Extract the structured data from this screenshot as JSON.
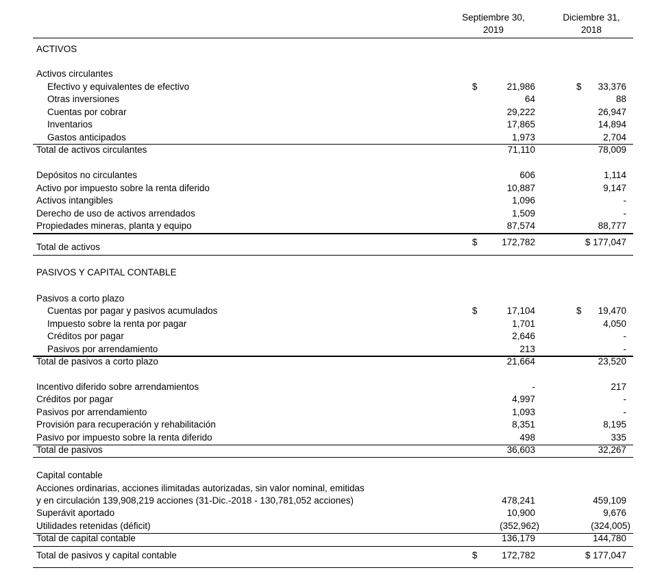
{
  "header": {
    "col1_line1": "Septiembre 30,",
    "col1_line2": "2019",
    "col2_line1": "Diciembre 31,",
    "col2_line2": "2018"
  },
  "rows": [
    {
      "label": "ACTIVOS"
    },
    {
      "label": "Activos circulantes"
    },
    {
      "label": "Efectivo y equivalentes de efectivo",
      "indent": true,
      "v1": "21,986",
      "v2": "33,376",
      "dollar1": "$",
      "dollar2": "$"
    },
    {
      "label": "Otras inversiones",
      "indent": true,
      "v1": "64",
      "v2": "88"
    },
    {
      "label": "Cuentas por cobrar",
      "indent": true,
      "v1": "29,222",
      "v2": "26,947"
    },
    {
      "label": "Inventarios",
      "indent": true,
      "v1": "17,865",
      "v2": "14,894"
    },
    {
      "label": "Gastos anticipados",
      "indent": true,
      "v1": "1,973",
      "v2": "2,704"
    },
    {
      "label": "Total de activos circulantes",
      "v1": "71,110",
      "v2": "78,009"
    },
    {
      "label": "Depósitos no circulantes",
      "v1": "606",
      "v2": "1,114"
    },
    {
      "label": "Activo por impuesto sobre la renta diferido",
      "v1": "10,887",
      "v2": "9,147"
    },
    {
      "label": "Activos intangibles",
      "v1": "1,096",
      "v2": "-"
    },
    {
      "label": "Derecho de uso de activos arrendados",
      "v1": "1,509",
      "v2": "-"
    },
    {
      "label": "Propiedades mineras, planta y equipo",
      "v1": "87,574",
      "v2": "88,777"
    },
    {
      "label": "Total de activos",
      "v1": "172,782",
      "v2": "$ 177,047",
      "dollar1": "$"
    },
    {
      "label": "PASIVOS Y CAPITAL CONTABLE"
    },
    {
      "label": "Pasivos a corto plazo"
    },
    {
      "label": "Cuentas por pagar y pasivos acumulados",
      "indent": true,
      "v1": "17,104",
      "v2": "19,470",
      "dollar1": "$",
      "dollar2": "$"
    },
    {
      "label": "Impuesto sobre la renta por pagar",
      "indent": true,
      "v1": "1,701",
      "v2": "4,050"
    },
    {
      "label": "Créditos por pagar",
      "indent": true,
      "v1": "2,646",
      "v2": "-"
    },
    {
      "label": "Pasivos por arrendamiento",
      "indent": true,
      "v1": "213",
      "v2": "-"
    },
    {
      "label": "Total de pasivos a corto plazo",
      "v1": "21,664",
      "v2": "23,520"
    },
    {
      "label": "Incentivo diferido sobre arrendamientos",
      "v1": "-",
      "v2": "217"
    },
    {
      "label": "Créditos por pagar",
      "v1": "4,997",
      "v2": "-"
    },
    {
      "label": "Pasivos por arrendamiento",
      "v1": "1,093",
      "v2": "-"
    },
    {
      "label": "Provisión para recuperación y rehabilitación",
      "v1": "8,351",
      "v2": "8,195"
    },
    {
      "label": "Pasivo por impuesto sobre la renta diferido",
      "v1": "498",
      "v2": "335"
    },
    {
      "label": "Total de pasivos",
      "v1": "36,603",
      "v2": "32,267"
    },
    {
      "label": "Capital contable"
    },
    {
      "label": "Acciones ordinarias, acciones ilimitadas autorizadas, sin valor nominal, emitidas"
    },
    {
      "label": " y en circulación 139,908,219 acciones (31-Dic.-2018 - 130,781,052 acciones)",
      "v1": "478,241",
      "v2": "459,109"
    },
    {
      "label": "Superávit aportado",
      "v1": "10,900",
      "v2": "9,676"
    },
    {
      "label": "Utilidades retenidas (déficit)",
      "v1": "(352,962)",
      "v2": "(324,005)"
    },
    {
      "label": "Total de capital contable",
      "v1": "136,179",
      "v2": "144,780"
    },
    {
      "label": "Total de pasivos y capital contable",
      "v1": "172,782",
      "v2": "$ 177,047",
      "dollar1": "$"
    }
  ]
}
